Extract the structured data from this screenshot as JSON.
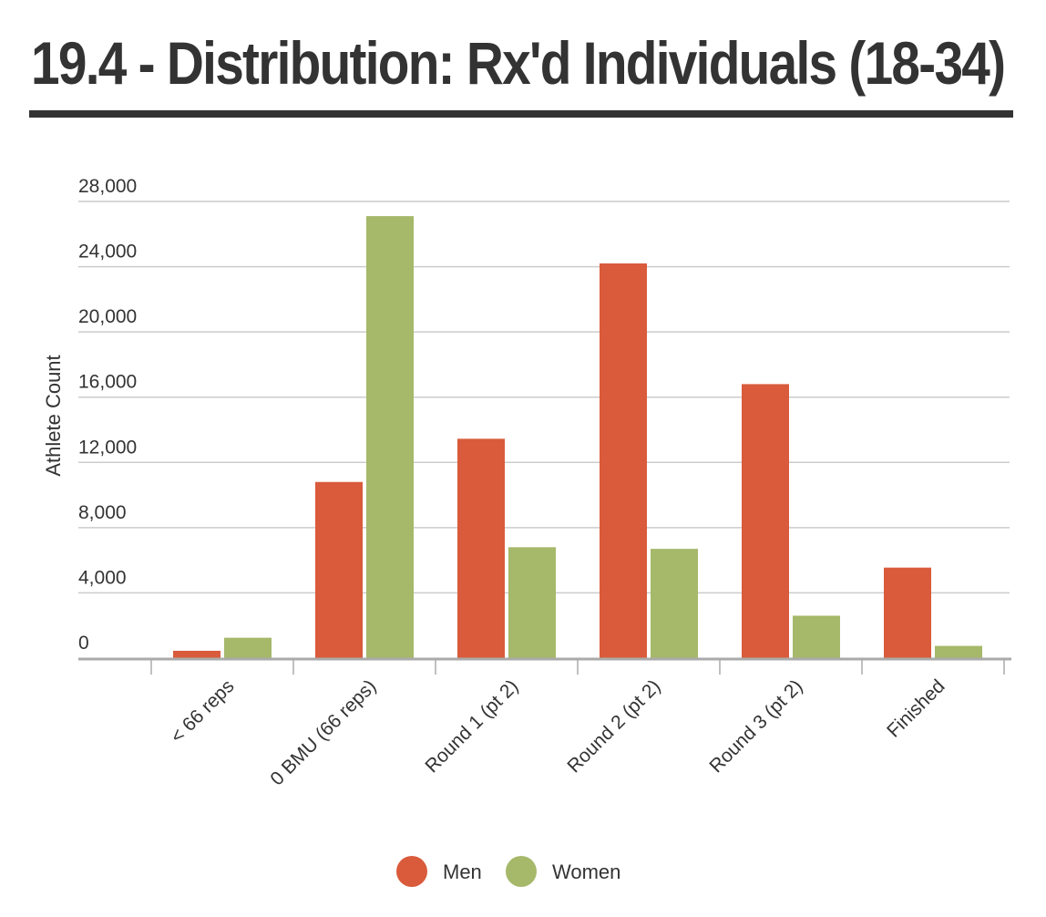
{
  "chart_data": {
    "type": "bar",
    "title": "19.4 - Distribution: Rx'd Individuals (18-34)",
    "xlabel": "",
    "ylabel": "Athlete Count",
    "categories": [
      "< 66 reps",
      "0 BMU (66 reps)",
      "Round 1 (pt 2)",
      "Round 2 (pt 2)",
      "Round 3 (pt 2)",
      "Finished"
    ],
    "series": [
      {
        "name": "Men",
        "color": "#d95b3b",
        "values": [
          450,
          10800,
          13450,
          24200,
          16800,
          5550
        ]
      },
      {
        "name": "Women",
        "color": "#a6b86a",
        "values": [
          1250,
          27100,
          6800,
          6700,
          2600,
          750
        ]
      }
    ],
    "ylim": [
      0,
      28000
    ],
    "yticks": [
      0,
      4000,
      8000,
      12000,
      16000,
      20000,
      24000,
      28000
    ],
    "ytick_labels": [
      "0",
      "4,000",
      "8,000",
      "12,000",
      "16,000",
      "20,000",
      "24,000",
      "28,000"
    ],
    "grid": true,
    "legend_position": "bottom-center"
  }
}
